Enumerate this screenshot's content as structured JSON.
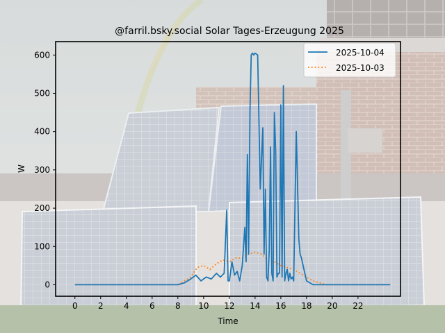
{
  "chart_data": {
    "type": "line",
    "title": "@farril.bsky.social Solar Tages-Erzeugung 2025",
    "xlabel": "Time",
    "ylabel": "W",
    "xlim": [
      -1.5,
      25.3
    ],
    "ylim": [
      -30,
      635
    ],
    "xticks": [
      0,
      2,
      4,
      6,
      8,
      10,
      12,
      14,
      16,
      18,
      20,
      22
    ],
    "yticks": [
      0,
      100,
      200,
      300,
      400,
      500,
      600
    ],
    "grid": false,
    "legend_position": "top-right",
    "background": "photo of solar panels on a brick house with a rainbow",
    "colors": {
      "series_1": "#1f77b4",
      "series_2": "#ff7f0e",
      "axes": "#000000"
    },
    "series": [
      {
        "name": "2025-10-04",
        "style": "solid",
        "x": [
          0,
          8,
          8.5,
          9,
          9.4,
          9.8,
          10.2,
          10.6,
          11.0,
          11.3,
          11.6,
          11.8,
          11.9,
          12.0,
          12.2,
          12.4,
          12.6,
          12.8,
          13.0,
          13.2,
          13.3,
          13.4,
          13.5,
          13.6,
          13.7,
          13.8,
          13.9,
          14.0,
          14.2,
          14.4,
          14.6,
          14.7,
          14.8,
          14.9,
          15.0,
          15.1,
          15.2,
          15.3,
          15.4,
          15.5,
          15.6,
          15.7,
          15.8,
          15.9,
          16.0,
          16.1,
          16.2,
          16.3,
          16.4,
          16.5,
          16.6,
          16.7,
          16.8,
          16.9,
          17.0,
          17.2,
          17.4,
          17.5,
          17.6,
          17.8,
          18.0,
          18.5,
          19.0,
          19.5,
          20,
          24.5
        ],
        "y": [
          0,
          0,
          5,
          15,
          25,
          10,
          20,
          15,
          30,
          20,
          30,
          195,
          10,
          10,
          60,
          25,
          35,
          10,
          50,
          150,
          60,
          340,
          80,
          450,
          600,
          605,
          600,
          605,
          600,
          250,
          410,
          80,
          250,
          20,
          10,
          90,
          360,
          30,
          10,
          450,
          350,
          20,
          30,
          30,
          470,
          20,
          520,
          10,
          30,
          40,
          10,
          30,
          15,
          20,
          10,
          400,
          120,
          80,
          70,
          40,
          10,
          0,
          0,
          0,
          0,
          0
        ]
      },
      {
        "name": "2025-10-03",
        "style": "dotted",
        "x": [
          0,
          8,
          8.5,
          9,
          9.5,
          10,
          10.5,
          11,
          11.5,
          12,
          12.5,
          13,
          13.5,
          14,
          14.5,
          15,
          15.5,
          16,
          16.5,
          17,
          17.5,
          18,
          18.5,
          19,
          19.5,
          20,
          24.5
        ],
        "y": [
          0,
          0,
          10,
          20,
          45,
          50,
          40,
          55,
          65,
          60,
          70,
          70,
          80,
          85,
          80,
          65,
          60,
          50,
          45,
          40,
          30,
          20,
          10,
          5,
          0,
          0,
          0
        ]
      }
    ]
  }
}
